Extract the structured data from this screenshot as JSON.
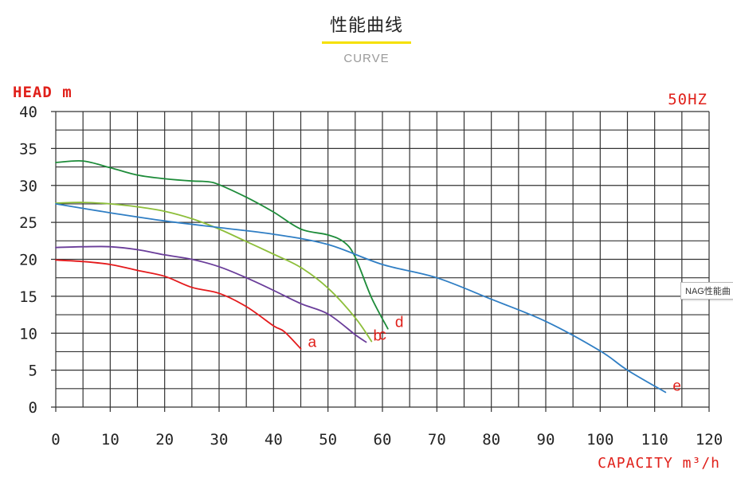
{
  "header": {
    "title": "性能曲线",
    "subtitle": "CURVE"
  },
  "tooltip": {
    "text": "NAG性能曲"
  },
  "chart_data": {
    "type": "line",
    "ylabel": "HEAD m",
    "xlabel": "CAPACITY m³/h",
    "frequency_label": "50HZ",
    "xlim": [
      0,
      120
    ],
    "ylim": [
      0,
      40
    ],
    "x_ticks": [
      0,
      10,
      20,
      30,
      40,
      50,
      60,
      70,
      80,
      90,
      100,
      110,
      120
    ],
    "y_ticks": [
      0,
      5,
      10,
      15,
      20,
      25,
      30,
      35,
      40
    ],
    "grid": true,
    "colors": {
      "axis_text": "#222222",
      "label_red": "#e0201a",
      "grid": "#333333"
    },
    "series": [
      {
        "label": "a",
        "color": "#e41a1c",
        "points": [
          [
            0,
            19.9
          ],
          [
            5,
            19.7
          ],
          [
            10,
            19.3
          ],
          [
            15,
            18.5
          ],
          [
            20,
            17.7
          ],
          [
            25,
            16.2
          ],
          [
            30,
            15.4
          ],
          [
            35,
            13.6
          ],
          [
            40,
            11.0
          ],
          [
            42,
            10.2
          ],
          [
            45,
            7.9
          ]
        ]
      },
      {
        "label": "b",
        "color": "#6a3d9a",
        "points": [
          [
            0,
            21.6
          ],
          [
            5,
            21.7
          ],
          [
            10,
            21.7
          ],
          [
            15,
            21.3
          ],
          [
            20,
            20.6
          ],
          [
            25,
            20.0
          ],
          [
            30,
            19.0
          ],
          [
            35,
            17.5
          ],
          [
            40,
            15.8
          ],
          [
            45,
            14.0
          ],
          [
            50,
            12.6
          ],
          [
            55,
            9.8
          ],
          [
            57,
            8.8
          ]
        ]
      },
      {
        "label": "c",
        "color": "#8dbe3a",
        "points": [
          [
            0,
            27.6
          ],
          [
            5,
            27.7
          ],
          [
            10,
            27.5
          ],
          [
            15,
            27.1
          ],
          [
            20,
            26.5
          ],
          [
            25,
            25.5
          ],
          [
            30,
            24.1
          ],
          [
            35,
            22.4
          ],
          [
            40,
            20.7
          ],
          [
            45,
            18.9
          ],
          [
            50,
            16.1
          ],
          [
            55,
            12.1
          ],
          [
            58,
            8.9
          ]
        ]
      },
      {
        "label": "d",
        "color": "#1e8c3a",
        "points": [
          [
            0,
            33.1
          ],
          [
            5,
            33.3
          ],
          [
            10,
            32.4
          ],
          [
            15,
            31.4
          ],
          [
            20,
            30.9
          ],
          [
            25,
            30.6
          ],
          [
            28,
            30.5
          ],
          [
            30,
            30.1
          ],
          [
            35,
            28.4
          ],
          [
            40,
            26.4
          ],
          [
            45,
            24.1
          ],
          [
            50,
            23.3
          ],
          [
            53,
            22.3
          ],
          [
            55,
            20.3
          ],
          [
            58,
            14.8
          ],
          [
            61,
            10.6
          ]
        ]
      },
      {
        "label": "e",
        "color": "#2f7ec4",
        "points": [
          [
            0,
            27.5
          ],
          [
            10,
            26.3
          ],
          [
            20,
            25.2
          ],
          [
            30,
            24.3
          ],
          [
            40,
            23.4
          ],
          [
            50,
            22.0
          ],
          [
            60,
            19.3
          ],
          [
            70,
            17.5
          ],
          [
            80,
            14.6
          ],
          [
            90,
            11.6
          ],
          [
            100,
            7.6
          ],
          [
            105,
            5.0
          ],
          [
            112,
            2.0
          ]
        ]
      }
    ]
  }
}
